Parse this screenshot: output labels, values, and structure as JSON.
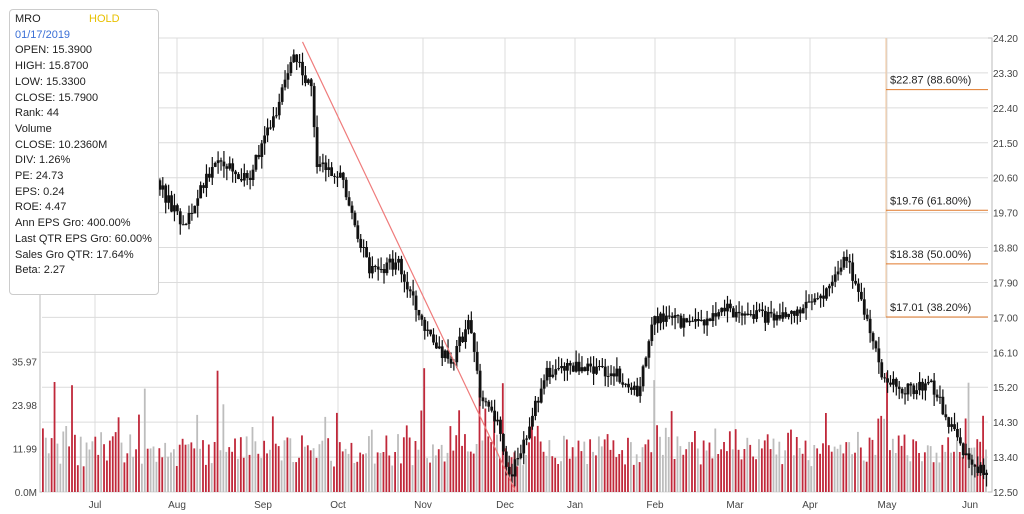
{
  "info": {
    "symbol": "MRO",
    "rating": "HOLD",
    "date": "01/17/2019",
    "open": "OPEN: 15.3900",
    "high": "HIGH: 15.8700",
    "low": "LOW: 15.3300",
    "close": "CLOSE: 15.7900",
    "rank": "Rank: 44",
    "volume_label": "Volume",
    "volume_close": "CLOSE: 10.2360M",
    "div": "DIV: 1.26%",
    "pe": "PE: 24.73",
    "eps": "EPS: 0.24",
    "roe": "ROE: 4.47",
    "ann_eps": "Ann EPS Gro: 400.00%",
    "qtr_eps": "Last QTR EPS Gro: 60.00%",
    "sales": "Sales Gro QTR: 17.64%",
    "beta": "Beta: 2.27"
  },
  "colors": {
    "up_volume": "#c0283a",
    "down_volume": "#bdbdbd",
    "fib_line": "#e0792a",
    "trend_line": "#ef7b7b",
    "grid": "#dcdcdc",
    "candle": "#111111"
  },
  "chart_data": {
    "type": "candlestick",
    "x_labels": [
      "Jul",
      "Aug",
      "Sep",
      "Oct",
      "Nov",
      "Dec",
      "Jan",
      "Feb",
      "Mar",
      "Apr",
      "May",
      "Jun"
    ],
    "price_axis": {
      "ticks": [
        "24.20",
        "23.30",
        "22.40",
        "21.50",
        "20.60",
        "19.70",
        "18.80",
        "17.90",
        "17.00",
        "16.10",
        "15.20",
        "14.30",
        "13.40",
        "12.50"
      ],
      "range": [
        12.5,
        24.2
      ]
    },
    "volume_axis": {
      "ticks": [
        "0.0M",
        "11.99",
        "23.98",
        "35.97"
      ],
      "range": [
        0,
        47.96
      ]
    },
    "price_anchors": [
      {
        "d": 0,
        "v": 19.8
      },
      {
        "d": 12,
        "v": 21.1
      },
      {
        "d": 22,
        "v": 20.7
      },
      {
        "d": 30,
        "v": 20.9
      },
      {
        "d": 38,
        "v": 20.6
      },
      {
        "d": 48,
        "v": 19.4
      },
      {
        "d": 60,
        "v": 21.2
      },
      {
        "d": 70,
        "v": 20.5
      },
      {
        "d": 80,
        "v": 22.3
      },
      {
        "d": 86,
        "v": 23.9
      },
      {
        "d": 92,
        "v": 22.8
      },
      {
        "d": 94,
        "v": 20.9
      },
      {
        "d": 102,
        "v": 20.7
      },
      {
        "d": 106,
        "v": 19.6
      },
      {
        "d": 112,
        "v": 18.2
      },
      {
        "d": 122,
        "v": 18.4
      },
      {
        "d": 132,
        "v": 16.6
      },
      {
        "d": 140,
        "v": 15.8
      },
      {
        "d": 146,
        "v": 16.9
      },
      {
        "d": 150,
        "v": 15.1
      },
      {
        "d": 156,
        "v": 14.2
      },
      {
        "d": 160,
        "v": 12.9
      },
      {
        "d": 166,
        "v": 13.9
      },
      {
        "d": 172,
        "v": 15.5
      },
      {
        "d": 180,
        "v": 15.7
      },
      {
        "d": 196,
        "v": 15.6
      },
      {
        "d": 204,
        "v": 15.0
      },
      {
        "d": 210,
        "v": 17.0
      },
      {
        "d": 225,
        "v": 16.8
      },
      {
        "d": 235,
        "v": 17.2
      },
      {
        "d": 250,
        "v": 17.0
      },
      {
        "d": 262,
        "v": 17.3
      },
      {
        "d": 270,
        "v": 17.7
      },
      {
        "d": 276,
        "v": 18.6
      },
      {
        "d": 280,
        "v": 17.6
      },
      {
        "d": 284,
        "v": 16.7
      },
      {
        "d": 288,
        "v": 15.5
      },
      {
        "d": 296,
        "v": 15.1
      },
      {
        "d": 305,
        "v": 15.3
      },
      {
        "d": 312,
        "v": 14.1
      },
      {
        "d": 318,
        "v": 13.3
      },
      {
        "d": 322,
        "v": 13.1
      }
    ],
    "trend_line": [
      {
        "d": 89,
        "v": 24.1
      },
      {
        "d": 162,
        "v": 12.55
      }
    ],
    "fib_levels": [
      {
        "value": 22.87,
        "label": "$22.87 (88.60%)"
      },
      {
        "value": 19.76,
        "label": "$19.76 (61.80%)"
      },
      {
        "value": 18.38,
        "label": "$18.38 (50.00%)"
      },
      {
        "value": 17.01,
        "label": "$17.01 (38.20%)"
      }
    ],
    "volume_tall_markers": [
      4,
      10,
      35,
      60,
      131,
      150,
      158,
      210,
      290,
      318
    ],
    "grid": true
  }
}
